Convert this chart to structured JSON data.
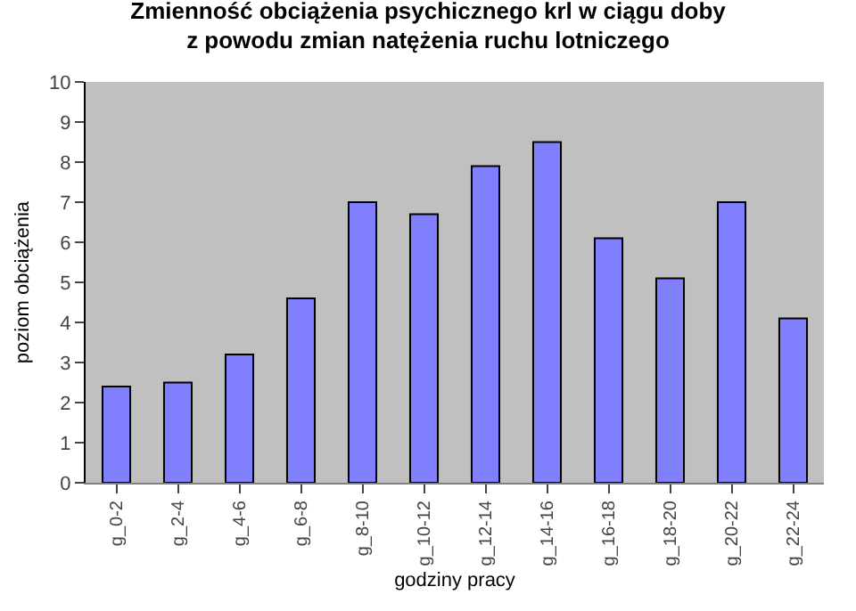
{
  "chart_data": {
    "type": "bar",
    "title": "Zmienność obciążenia psychicznego krl w ciągu doby\nz powodu zmian natężenia ruchu lotniczego",
    "xlabel": "godziny pracy",
    "ylabel": "poziom obciążenia",
    "categories": [
      "g_0-2",
      "g_2-4",
      "g_4-6",
      "g_6-8",
      "g_8-10",
      "g_10-12",
      "g_12-14",
      "g_14-16",
      "g_16-18",
      "g_18-20",
      "g_20-22",
      "g_22-24"
    ],
    "values": [
      2.4,
      2.5,
      3.2,
      4.6,
      7.0,
      6.7,
      7.9,
      8.5,
      6.1,
      5.1,
      7.0,
      4.1
    ],
    "color": "#8080ff",
    "ylim": [
      0,
      10
    ],
    "yticks": [
      0,
      1,
      2,
      3,
      4,
      5,
      6,
      7,
      8,
      9,
      10
    ],
    "grid": false,
    "legend": false
  }
}
